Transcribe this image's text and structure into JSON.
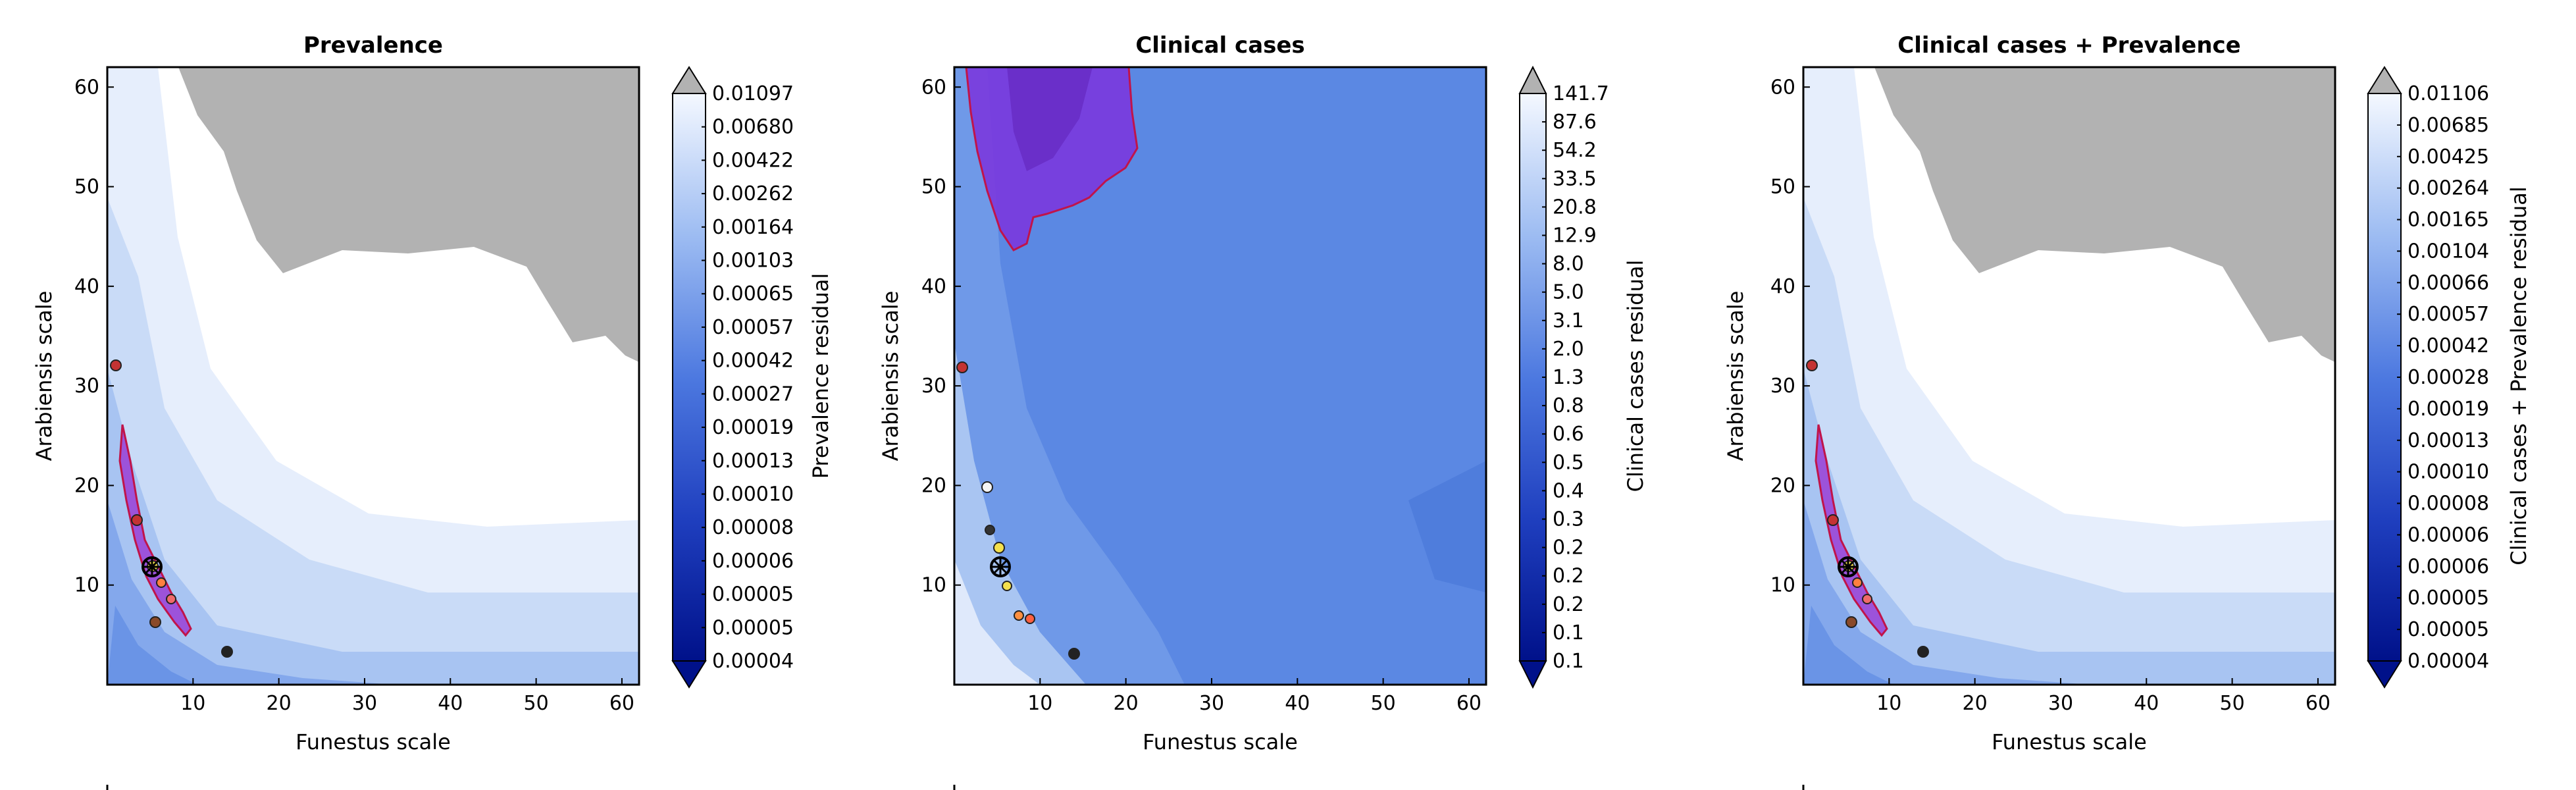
{
  "chart_data": [
    {
      "type": "contour",
      "title": "Prevalence",
      "xlabel": "Funestus scale",
      "ylabel": "Arabiensis scale",
      "xlim": [
        0,
        62
      ],
      "ylim": [
        0,
        62
      ],
      "xticks": [
        "10",
        "20",
        "30",
        "40",
        "50",
        "60"
      ],
      "yticks": [
        "10",
        "20",
        "30",
        "40",
        "50",
        "60"
      ],
      "colorbar_label": "Prevalence residual",
      "colorbar_levels": [
        "0.00004",
        "0.00005",
        "0.00005",
        "0.00006",
        "0.00008",
        "0.00010",
        "0.00013",
        "0.00019",
        "0.00027",
        "0.00042",
        "0.00057",
        "0.00065",
        "0.00103",
        "0.00164",
        "0.00262",
        "0.00422",
        "0.00680",
        "0.01097"
      ],
      "highlight_color": "#9a3fd6",
      "grey_region": "top-right",
      "best_fit": [
        5.5,
        12
      ]
    },
    {
      "type": "contour",
      "title": "Clinical cases",
      "xlabel": "Funestus scale",
      "ylabel": "Arabiensis scale",
      "xlim": [
        0,
        62
      ],
      "ylim": [
        0,
        62
      ],
      "xticks": [
        "10",
        "20",
        "30",
        "40",
        "50",
        "60"
      ],
      "yticks": [
        "10",
        "20",
        "30",
        "40",
        "50",
        "60"
      ],
      "colorbar_label": "Clinical cases residual",
      "colorbar_levels": [
        "0.1",
        "0.1",
        "0.2",
        "0.2",
        "0.2",
        "0.3",
        "0.4",
        "0.5",
        "0.6",
        "0.8",
        "1.3",
        "2.0",
        "3.1",
        "5.0",
        "8.0",
        "12.9",
        "20.8",
        "33.5",
        "54.2",
        "87.6",
        "141.7"
      ],
      "highlight_color": "#7a38dd",
      "best_fit": [
        5.5,
        12
      ]
    },
    {
      "type": "contour",
      "title": "Clinical cases + Prevalence",
      "xlabel": "Funestus scale",
      "ylabel": "Arabiensis scale",
      "xlim": [
        0,
        62
      ],
      "ylim": [
        0,
        62
      ],
      "xticks": [
        "10",
        "20",
        "30",
        "40",
        "50",
        "60"
      ],
      "yticks": [
        "10",
        "20",
        "30",
        "40",
        "50",
        "60"
      ],
      "colorbar_label": "Clinical cases + Prevalence residual",
      "colorbar_levels": [
        "0.00004",
        "0.00005",
        "0.00005",
        "0.00006",
        "0.00006",
        "0.00008",
        "0.00010",
        "0.00013",
        "0.00019",
        "0.00028",
        "0.00042",
        "0.00057",
        "0.00066",
        "0.00104",
        "0.00165",
        "0.00264",
        "0.00425",
        "0.00685",
        "0.01106"
      ],
      "highlight_color": "#9a3fd6",
      "grey_region": "top-right",
      "best_fit": [
        5.5,
        12
      ]
    }
  ]
}
